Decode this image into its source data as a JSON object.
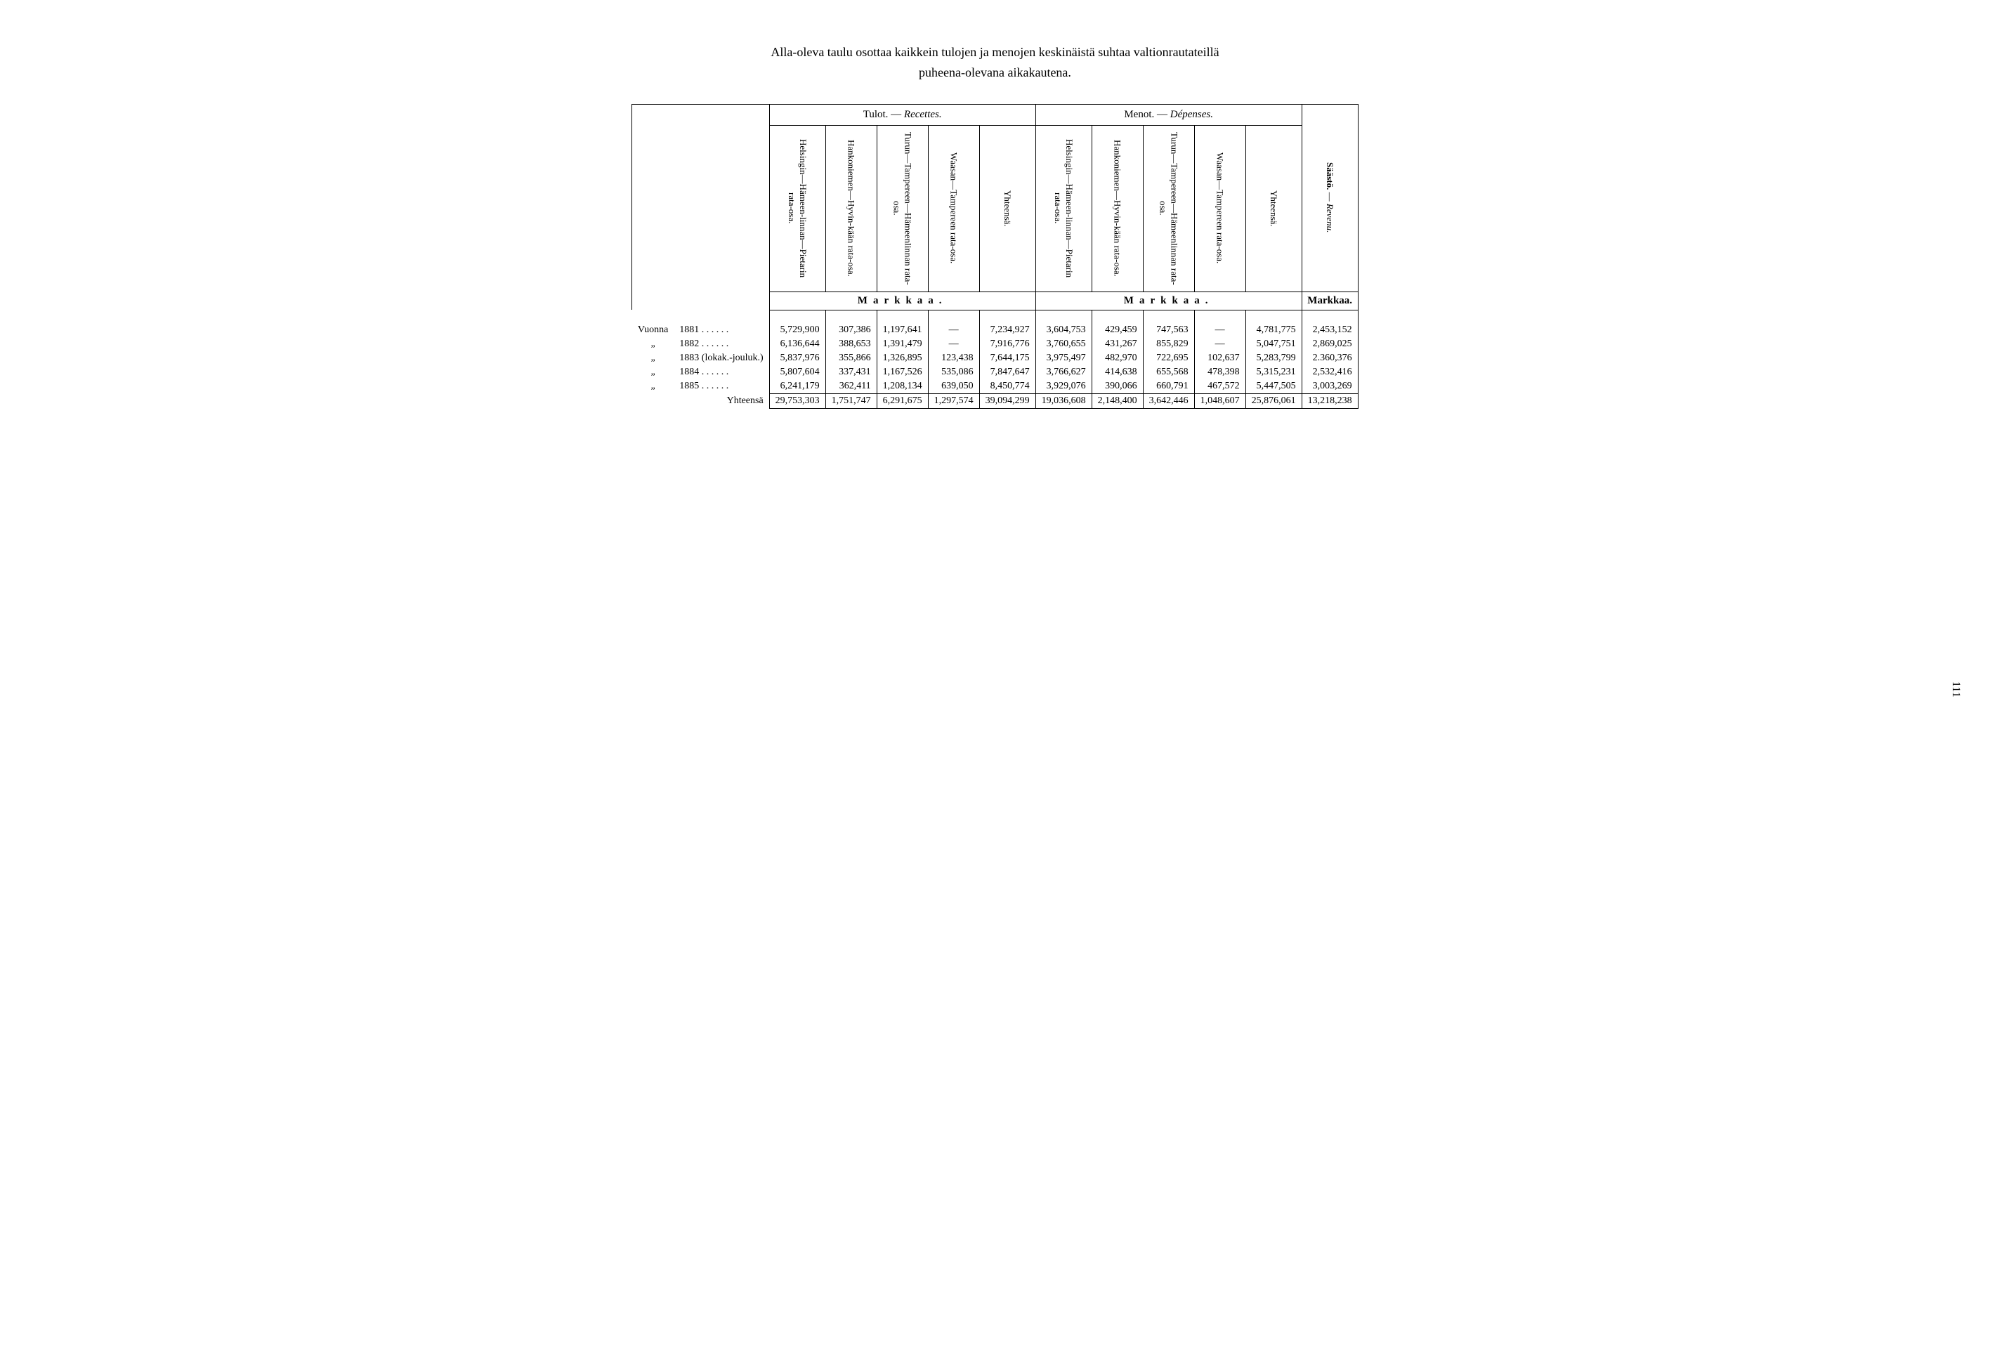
{
  "page_number": "111",
  "intro_line1": "Alla-oleva taulu osottaa kaikkein tulojen ja menojen keskinäistä suhtaa valtionrautateillä",
  "intro_line2": "puheena-olevana aikakautena.",
  "headers": {
    "tulot_label": "Tulot. —",
    "tulot_italic": "Recettes.",
    "menot_label": "Menot. —",
    "menot_italic": "Dépenses.",
    "saasto": "Säästö.",
    "revenu": "Revenu.",
    "col1": "Helsingin—Hämeen-linnan—Pietarin rata-osa.",
    "col2": "Hankoniemen—Hyvin-kään rata-osa.",
    "col3": "Turun—Tampereen—Hämeenlinnan rata-osa.",
    "col4": "Waasan—Tampereen rata-osa.",
    "col5": "Yhteensä.",
    "col6": "Helsingin—Hämeen-linnan—Pietarin rata-osa.",
    "col7": "Hankoniemen—Hyvin-kään rata-osa.",
    "col8": "Turun—Tampereen—Hämeenlinnan rata-osa.",
    "col9": "Waasan—Tampereen rata-osa.",
    "col10": "Yhteensä.",
    "markkaa_spaced": "Markkaa.",
    "markkaa_plain": "Markkaa."
  },
  "row_labels": {
    "vuonna": "Vuonna",
    "ditto": "„",
    "y1881": "1881  .  .  .  .  .  .",
    "y1882": "1882  .  .  .  .  .  .",
    "y1883": "1883 (lokak.-jouluk.)",
    "y1884": "1884  .  .  .  .  .  .",
    "y1885": "1885   .  .  .  .  .  .",
    "yhteensa": "Yhteensä"
  },
  "rows": [
    [
      "5,729,900",
      "307,386",
      "1,197,641",
      "—",
      "7,234,927",
      "3,604,753",
      "429,459",
      "747,563",
      "—",
      "4,781,775",
      "2,453,152"
    ],
    [
      "6,136,644",
      "388,653",
      "1,391,479",
      "—",
      "7,916,776",
      "3,760,655",
      "431,267",
      "855,829",
      "—",
      "5,047,751",
      "2,869,025"
    ],
    [
      "5,837,976",
      "355,866",
      "1,326,895",
      "123,438",
      "7,644,175",
      "3,975,497",
      "482,970",
      "722,695",
      "102,637",
      "5,283,799",
      "2.360,376"
    ],
    [
      "5,807,604",
      "337,431",
      "1,167,526",
      "535,086",
      "7,847,647",
      "3,766,627",
      "414,638",
      "655,568",
      "478,398",
      "5,315,231",
      "2,532,416"
    ],
    [
      "6,241,179",
      "362,411",
      "1,208,134",
      "639,050",
      "8,450,774",
      "3,929,076",
      "390,066",
      "660,791",
      "467,572",
      "5,447,505",
      "3,003,269"
    ]
  ],
  "totals": [
    "29,753,303",
    "1,751,747",
    "6,291,675",
    "1,297,574",
    "39,094,299",
    "19,036,608",
    "2,148,400",
    "3,642,446",
    "1,048,607",
    "25,876,061",
    "13,218,238"
  ]
}
